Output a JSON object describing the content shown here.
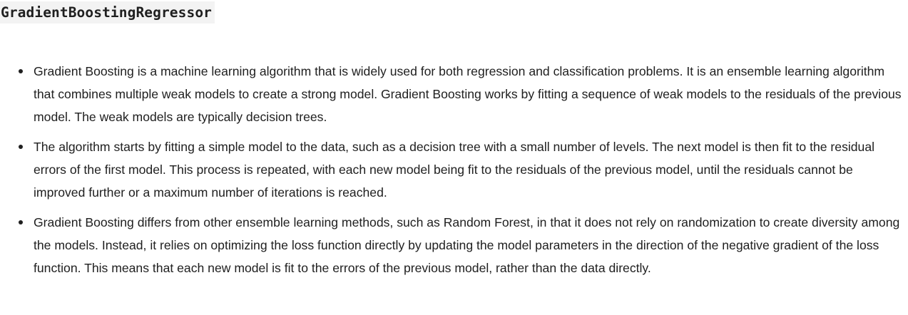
{
  "heading": {
    "title": "GradientBoostingRegressor"
  },
  "bullets": [
    {
      "text": "Gradient Boosting is a machine learning algorithm that is widely used for both regression and classification problems. It is an ensemble learning algorithm that combines multiple weak models to create a strong model. Gradient Boosting works by fitting a sequence of weak models to the residuals of the previous model. The weak models are typically decision trees."
    },
    {
      "text": "The algorithm starts by fitting a simple model to the data, such as a decision tree with a small number of levels. The next model is then fit to the residual errors of the first model. This process is repeated, with each new model being fit to the residuals of the previous model, until the residuals cannot be improved further or a maximum number of iterations is reached."
    },
    {
      "text": "Gradient Boosting differs from other ensemble learning methods, such as Random Forest, in that it does not rely on randomization to create diversity among the models. Instead, it relies on optimizing the loss function directly by updating the model parameters in the direction of the negative gradient of the loss function. This means that each new model is fit to the errors of the previous model, rather than the data directly."
    }
  ]
}
